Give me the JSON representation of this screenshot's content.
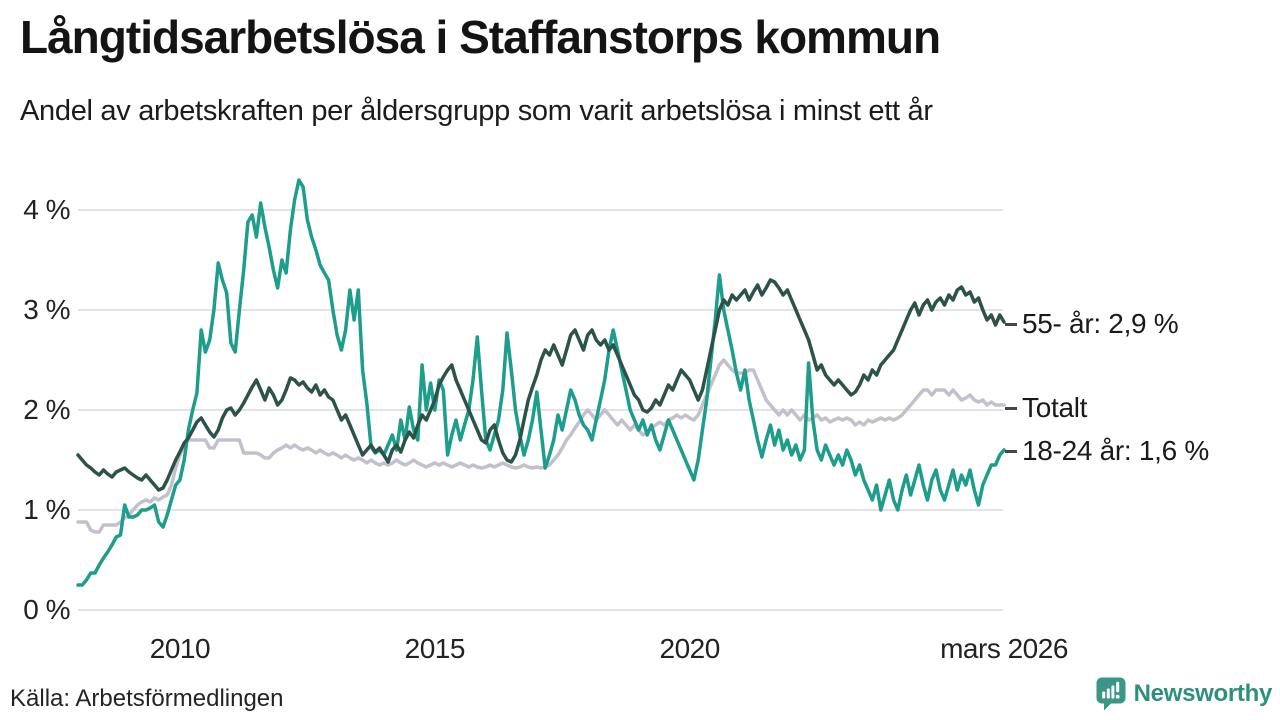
{
  "header": {
    "title": "Långtidsarbetslösa i Staffanstorps kommun",
    "subtitle": "Andel av arbetskraften per åldersgrupp som varit arbetslösa i minst ett år"
  },
  "footer": {
    "source": "Källa: Arbetsförmedlingen",
    "brand": "Newsworthy"
  },
  "colors": {
    "teal": "#1d9d8b",
    "dark_green": "#2c5349",
    "light_gray": "#c3c0cd",
    "gridline": "#e3e3e3",
    "brand_teal": "#3c9688",
    "text": "#1a1a1a"
  },
  "chart_data": {
    "type": "line",
    "title": "Långtidsarbetslösa i Staffanstorps kommun",
    "subtitle": "Andel av arbetskraften per åldersgrupp som varit arbetslösa i minst ett år",
    "xlabel": "",
    "ylabel": "",
    "grid": true,
    "legend_position": "right-end-labels",
    "x_start_year": 2008,
    "x_start": "2008-01",
    "x_end": "2026-03",
    "points_per_year": 12,
    "ylim": [
      0,
      4
    ],
    "y_ticks": [
      {
        "value": 0,
        "label": "0 %"
      },
      {
        "value": 1,
        "label": "1 %"
      },
      {
        "value": 2,
        "label": "2 %"
      },
      {
        "value": 3,
        "label": "3 %"
      },
      {
        "value": 4,
        "label": "4 %"
      }
    ],
    "x_ticks": [
      {
        "t": 2010,
        "label": "2010"
      },
      {
        "t": 2015,
        "label": "2015"
      },
      {
        "t": 2020,
        "label": "2020"
      },
      {
        "t": 2026.1667,
        "label": "mars 2026"
      }
    ],
    "series": [
      {
        "id": "totalt",
        "name": "Totalt",
        "label": "Totalt",
        "end_value": "2,0 %",
        "color": "#c3c0cd",
        "values": [
          0.88,
          0.88,
          0.88,
          0.8,
          0.78,
          0.78,
          0.85,
          0.85,
          0.85,
          0.85,
          0.88,
          0.92,
          0.95,
          1.0,
          1.05,
          1.08,
          1.1,
          1.08,
          1.12,
          1.1,
          1.13,
          1.15,
          1.25,
          1.42,
          1.55,
          1.65,
          1.7,
          1.7,
          1.7,
          1.7,
          1.7,
          1.62,
          1.62,
          1.7,
          1.7,
          1.7,
          1.7,
          1.7,
          1.7,
          1.57,
          1.57,
          1.57,
          1.57,
          1.55,
          1.52,
          1.52,
          1.57,
          1.6,
          1.62,
          1.65,
          1.62,
          1.65,
          1.62,
          1.6,
          1.62,
          1.6,
          1.57,
          1.6,
          1.57,
          1.55,
          1.57,
          1.55,
          1.52,
          1.55,
          1.52,
          1.5,
          1.52,
          1.5,
          1.47,
          1.5,
          1.47,
          1.45,
          1.47,
          1.45,
          1.47,
          1.5,
          1.47,
          1.45,
          1.47,
          1.5,
          1.47,
          1.45,
          1.43,
          1.45,
          1.47,
          1.45,
          1.47,
          1.45,
          1.43,
          1.45,
          1.47,
          1.45,
          1.43,
          1.45,
          1.43,
          1.42,
          1.43,
          1.45,
          1.43,
          1.45,
          1.47,
          1.45,
          1.43,
          1.42,
          1.43,
          1.45,
          1.43,
          1.42,
          1.43,
          1.42,
          1.43,
          1.45,
          1.5,
          1.55,
          1.62,
          1.7,
          1.75,
          1.82,
          1.88,
          1.95,
          2.0,
          1.95,
          1.9,
          1.95,
          2.0,
          1.95,
          1.9,
          1.85,
          1.9,
          1.85,
          1.8,
          1.85,
          1.8,
          1.75,
          1.78,
          1.82,
          1.85,
          1.88,
          1.85,
          1.9,
          1.92,
          1.95,
          1.92,
          1.95,
          1.92,
          1.9,
          1.95,
          2.05,
          2.15,
          2.25,
          2.35,
          2.45,
          2.5,
          2.45,
          2.4,
          2.37,
          2.37,
          2.37,
          2.4,
          2.4,
          2.3,
          2.2,
          2.1,
          2.05,
          2.0,
          1.95,
          2.0,
          1.95,
          2.0,
          1.95,
          1.9,
          1.95,
          1.9,
          1.92,
          1.95,
          1.9,
          1.92,
          1.88,
          1.9,
          1.92,
          1.9,
          1.92,
          1.9,
          1.85,
          1.88,
          1.85,
          1.9,
          1.88,
          1.9,
          1.92,
          1.9,
          1.92,
          1.9,
          1.92,
          1.95,
          2.0,
          2.05,
          2.1,
          2.15,
          2.2,
          2.2,
          2.15,
          2.2,
          2.2,
          2.2,
          2.15,
          2.2,
          2.15,
          2.1,
          2.12,
          2.15,
          2.1,
          2.08,
          2.1,
          2.05,
          2.08,
          2.05,
          2.05,
          2.05
        ]
      },
      {
        "id": "18-24",
        "name": "18-24 år",
        "label": "18-24 år: 1,6 %",
        "end_value": "1,6 %",
        "color": "#1d9d8b",
        "values": [
          0.25,
          0.25,
          0.3,
          0.37,
          0.37,
          0.45,
          0.52,
          0.58,
          0.65,
          0.73,
          0.75,
          1.05,
          0.93,
          0.93,
          0.95,
          1.0,
          1.0,
          1.02,
          1.05,
          0.88,
          0.83,
          0.95,
          1.1,
          1.25,
          1.3,
          1.5,
          1.8,
          2.0,
          2.17,
          2.8,
          2.58,
          2.7,
          3.0,
          3.47,
          3.3,
          3.17,
          2.67,
          2.58,
          3.0,
          3.4,
          3.88,
          3.95,
          3.73,
          4.07,
          3.83,
          3.63,
          3.4,
          3.22,
          3.5,
          3.37,
          3.8,
          4.1,
          4.3,
          4.23,
          3.9,
          3.73,
          3.6,
          3.45,
          3.37,
          3.3,
          3.0,
          2.75,
          2.6,
          2.8,
          3.2,
          2.9,
          3.2,
          2.4,
          2.07,
          1.63,
          1.57,
          1.6,
          1.55,
          1.65,
          1.75,
          1.6,
          1.9,
          1.7,
          2.03,
          1.8,
          1.7,
          2.45,
          2.0,
          2.27,
          2.0,
          2.3,
          2.2,
          1.55,
          1.75,
          1.9,
          1.7,
          1.85,
          2.0,
          2.3,
          2.73,
          2.2,
          1.7,
          1.6,
          1.75,
          1.9,
          2.2,
          2.77,
          2.4,
          2.0,
          1.75,
          1.55,
          1.7,
          1.9,
          2.18,
          1.8,
          1.42,
          1.55,
          1.7,
          1.95,
          1.8,
          2.0,
          2.2,
          2.1,
          1.95,
          1.85,
          1.8,
          1.7,
          1.9,
          2.1,
          2.3,
          2.6,
          2.8,
          2.6,
          2.4,
          2.2,
          2.0,
          1.9,
          1.8,
          1.9,
          1.75,
          1.85,
          1.7,
          1.6,
          1.75,
          1.9,
          1.8,
          1.7,
          1.6,
          1.5,
          1.4,
          1.3,
          1.5,
          1.8,
          2.1,
          2.5,
          2.9,
          3.35,
          3.0,
          2.8,
          2.6,
          2.37,
          2.2,
          2.4,
          2.1,
          1.9,
          1.7,
          1.53,
          1.7,
          1.85,
          1.65,
          1.8,
          1.6,
          1.7,
          1.55,
          1.65,
          1.5,
          1.6,
          2.47,
          1.9,
          1.6,
          1.5,
          1.65,
          1.55,
          1.45,
          1.55,
          1.45,
          1.6,
          1.5,
          1.35,
          1.45,
          1.3,
          1.2,
          1.1,
          1.25,
          1.0,
          1.15,
          1.3,
          1.1,
          1.0,
          1.2,
          1.35,
          1.15,
          1.3,
          1.45,
          1.25,
          1.1,
          1.3,
          1.4,
          1.2,
          1.1,
          1.25,
          1.4,
          1.2,
          1.35,
          1.25,
          1.4,
          1.2,
          1.05,
          1.25,
          1.35,
          1.45,
          1.45,
          1.55,
          1.6
        ]
      },
      {
        "id": "55",
        "name": "55- år",
        "label": "55- år: 2,9 %",
        "end_value": "2,9 %",
        "color": "#2c5349",
        "values": [
          1.55,
          1.5,
          1.45,
          1.42,
          1.38,
          1.35,
          1.4,
          1.36,
          1.33,
          1.38,
          1.4,
          1.42,
          1.38,
          1.35,
          1.32,
          1.3,
          1.35,
          1.3,
          1.25,
          1.2,
          1.22,
          1.3,
          1.4,
          1.5,
          1.58,
          1.67,
          1.72,
          1.8,
          1.88,
          1.92,
          1.85,
          1.78,
          1.73,
          1.8,
          1.92,
          2.0,
          2.02,
          1.95,
          2.0,
          2.07,
          2.15,
          2.23,
          2.3,
          2.2,
          2.1,
          2.22,
          2.15,
          2.05,
          2.1,
          2.2,
          2.32,
          2.3,
          2.25,
          2.28,
          2.22,
          2.18,
          2.25,
          2.15,
          2.2,
          2.13,
          2.1,
          2.0,
          1.9,
          1.95,
          1.85,
          1.75,
          1.65,
          1.55,
          1.6,
          1.65,
          1.58,
          1.62,
          1.55,
          1.48,
          1.6,
          1.65,
          1.58,
          1.7,
          1.78,
          1.72,
          1.85,
          1.95,
          1.9,
          2.0,
          2.1,
          2.25,
          2.33,
          2.4,
          2.45,
          2.3,
          2.2,
          2.1,
          2.0,
          1.9,
          1.8,
          1.7,
          1.67,
          1.8,
          1.85,
          1.7,
          1.57,
          1.5,
          1.48,
          1.55,
          1.7,
          1.9,
          2.1,
          2.23,
          2.35,
          2.5,
          2.6,
          2.55,
          2.65,
          2.55,
          2.45,
          2.6,
          2.75,
          2.8,
          2.7,
          2.6,
          2.75,
          2.8,
          2.7,
          2.65,
          2.7,
          2.6,
          2.65,
          2.55,
          2.45,
          2.35,
          2.25,
          2.15,
          2.1,
          2.0,
          1.98,
          2.02,
          2.1,
          2.05,
          2.15,
          2.25,
          2.2,
          2.3,
          2.4,
          2.35,
          2.3,
          2.2,
          2.1,
          2.2,
          2.4,
          2.6,
          2.8,
          3.0,
          3.1,
          3.05,
          3.15,
          3.1,
          3.15,
          3.2,
          3.1,
          3.18,
          3.25,
          3.15,
          3.22,
          3.3,
          3.28,
          3.22,
          3.15,
          3.2,
          3.1,
          3.0,
          2.9,
          2.8,
          2.7,
          2.55,
          2.4,
          2.45,
          2.35,
          2.3,
          2.25,
          2.3,
          2.25,
          2.2,
          2.15,
          2.18,
          2.25,
          2.35,
          2.3,
          2.4,
          2.35,
          2.45,
          2.5,
          2.55,
          2.6,
          2.7,
          2.8,
          2.9,
          3.0,
          3.07,
          2.95,
          3.05,
          3.1,
          3.0,
          3.08,
          3.12,
          3.05,
          3.15,
          3.1,
          3.2,
          3.23,
          3.15,
          3.18,
          3.08,
          3.12,
          3.0,
          2.9,
          2.95,
          2.85,
          2.95,
          2.88
        ]
      }
    ]
  }
}
